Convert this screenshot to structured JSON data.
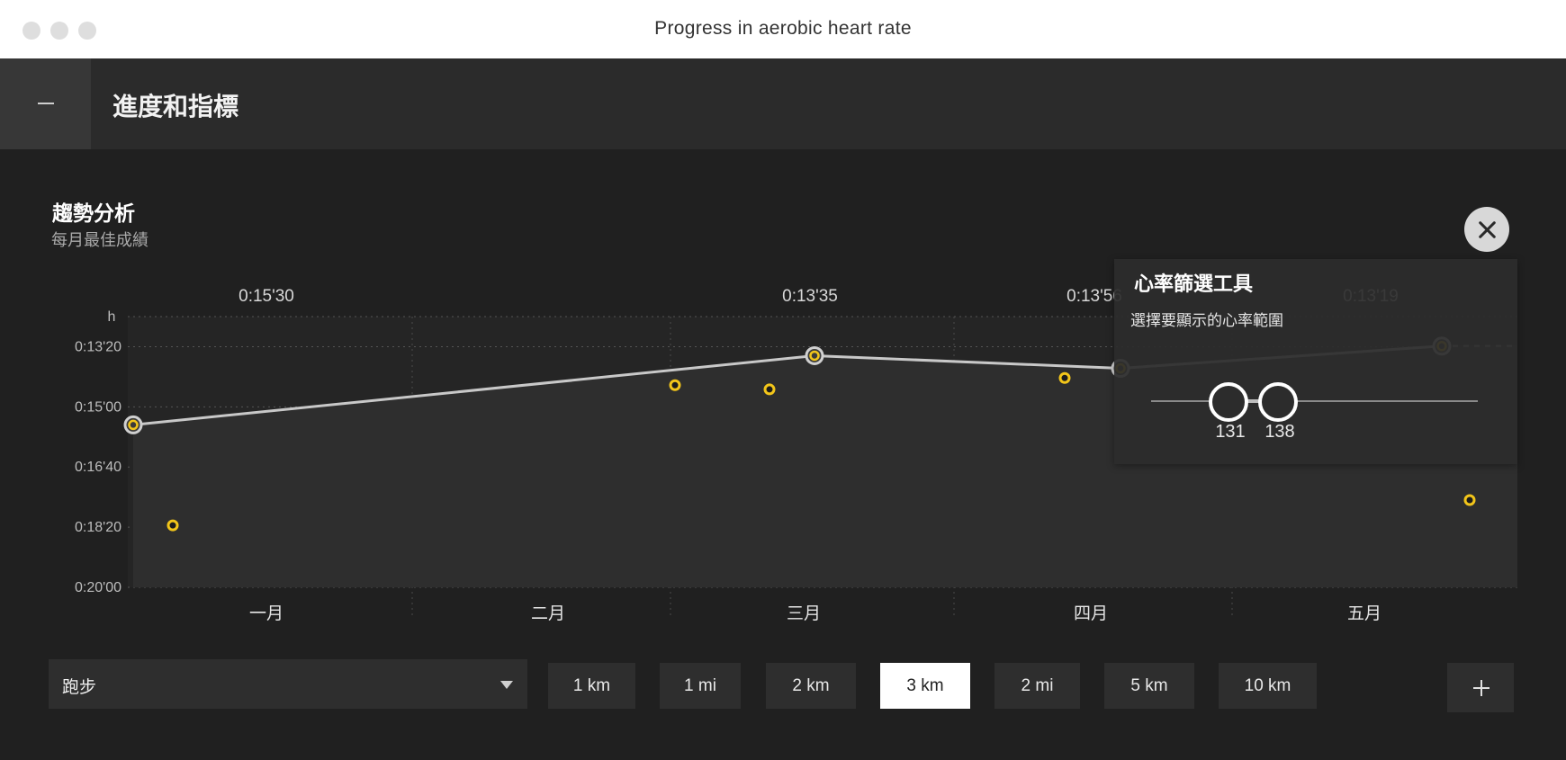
{
  "window": {
    "title": "Progress in aerobic heart rate"
  },
  "header": {
    "collapse_icon": "minus-icon",
    "title": "進度和指標"
  },
  "section": {
    "title": "趨勢分析",
    "subtitle": "每月最佳成績"
  },
  "chart_data": {
    "type": "line",
    "ylabel": "h",
    "y_ticks": [
      "0:13'20",
      "0:15'00",
      "0:16'40",
      "0:18'20",
      "0:20'00"
    ],
    "y_tick_seconds": [
      800,
      900,
      1000,
      1100,
      1200
    ],
    "ylim_seconds": [
      1200,
      750
    ],
    "categories": [
      "一月",
      "二月",
      "三月",
      "四月",
      "五月"
    ],
    "best_labels": [
      "0:15'30",
      "0:13'35",
      "0:13'56",
      "0:13'19"
    ],
    "best_series": [
      {
        "x": "一月",
        "t": 930,
        "label": "0:15'30"
      },
      {
        "x": "三月",
        "t": 815,
        "label": "0:13'35"
      },
      {
        "x": "四月",
        "t": 836,
        "label": "0:13'56"
      },
      {
        "x": "五月",
        "t": 799,
        "label": "0:13'19"
      }
    ],
    "runs": [
      {
        "x": "一月",
        "t": 1097
      },
      {
        "x": "二月",
        "t": 864
      },
      {
        "x": "三月",
        "t": 871
      },
      {
        "x": "四月",
        "t": 852
      },
      {
        "x": "五月",
        "t": 1055
      }
    ],
    "grid": true,
    "colors": {
      "line": "#c8c8c8",
      "point": "#f2c51a",
      "area": "#2c2c2c"
    }
  },
  "hr_filter": {
    "title": "心率篩選工具",
    "description": "選擇要顯示的心率範圍",
    "min": 131,
    "max": 138,
    "close_icon": "close-icon"
  },
  "sport_select": {
    "value": "跑步",
    "caret_icon": "chevron-down-icon"
  },
  "distances": [
    {
      "label": "1 km",
      "active": false
    },
    {
      "label": "1 mi",
      "active": false
    },
    {
      "label": "2 km",
      "active": false
    },
    {
      "label": "3 km",
      "active": true
    },
    {
      "label": "2 mi",
      "active": false
    },
    {
      "label": "5 km",
      "active": false
    },
    {
      "label": "10 km",
      "active": false
    }
  ],
  "add_button": {
    "icon": "plus-icon"
  }
}
